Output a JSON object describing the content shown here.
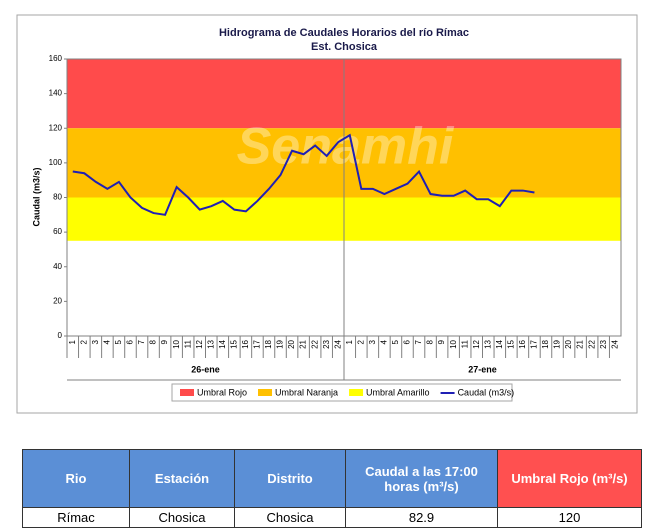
{
  "chart_data": {
    "type": "line",
    "title": "Hidrograma de Caudales Horarios del río Rímac",
    "subtitle": "Est. Chosica",
    "y_label": "Caudal  (m3/s)",
    "watermark": "Senamhi",
    "categories": [
      "1",
      "2",
      "3",
      "4",
      "5",
      "6",
      "7",
      "8",
      "9",
      "10",
      "11",
      "12",
      "13",
      "14",
      "15",
      "16",
      "17",
      "18",
      "19",
      "20",
      "21",
      "22",
      "23",
      "24",
      "1",
      "2",
      "3",
      "4",
      "5",
      "6",
      "7",
      "8",
      "9",
      "10",
      "11",
      "12",
      "13",
      "14",
      "15",
      "16",
      "17",
      "18",
      "19",
      "20",
      "21",
      "22",
      "23",
      "24"
    ],
    "x_groups": [
      "26-ene",
      "27-ene"
    ],
    "bands": [
      {
        "name": "Umbral Rojo",
        "color": "#ff4b4b",
        "from": 120,
        "to": 160
      },
      {
        "name": "Umbral Naranja",
        "color": "#ffc000",
        "from": 80,
        "to": 120
      },
      {
        "name": "Umbral Amarillo",
        "color": "#ffff00",
        "from": 55,
        "to": 80
      }
    ],
    "series": [
      {
        "name": "Caudal (m3/s)",
        "color": "#1f1fb4",
        "values": [
          95,
          94,
          89,
          85,
          89,
          80,
          74,
          71,
          70,
          86,
          80,
          73,
          75,
          78,
          73,
          72,
          78,
          85,
          93,
          107,
          105,
          110,
          104,
          112,
          116,
          85,
          85,
          82,
          85,
          88,
          95,
          82,
          81,
          81,
          84,
          79,
          79,
          75,
          84,
          84,
          82.9,
          null,
          null,
          null,
          null,
          null,
          null,
          null
        ]
      }
    ],
    "ylim": [
      0,
      160
    ],
    "yticks": [
      0,
      20,
      40,
      60,
      80,
      100,
      120,
      140,
      160
    ]
  },
  "table": {
    "header": [
      "Rio",
      "Estación",
      "Distrito",
      "Caudal a las 17:00 horas (m³/s)",
      "Umbral Rojo (m³/s)"
    ],
    "rows": [
      [
        "Rímac",
        "Chosica",
        "Chosica",
        82.9,
        120
      ]
    ]
  }
}
